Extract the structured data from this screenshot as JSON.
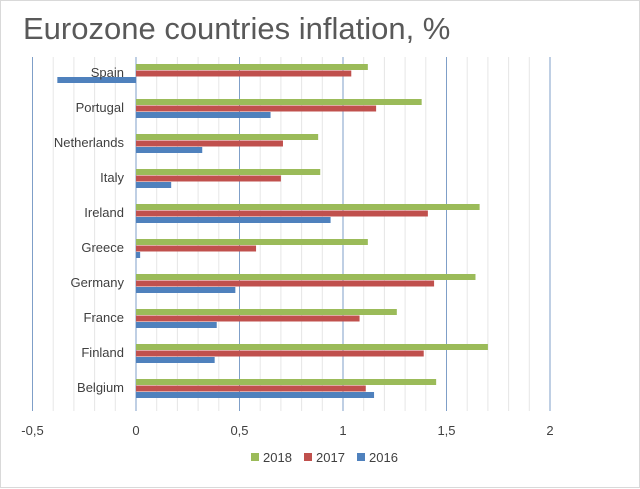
{
  "chart_data": {
    "type": "bar",
    "orientation": "horizontal",
    "title": "Eurozone countries inflation, %",
    "categories": [
      "Spain",
      "Portugal",
      "Netherlands",
      "Italy",
      "Ireland",
      "Greece",
      "Germany",
      "France",
      "Finland",
      "Belgium"
    ],
    "series": [
      {
        "name": "2018",
        "color": "#9bbb59",
        "values": [
          1.12,
          1.38,
          0.88,
          0.89,
          1.66,
          1.12,
          1.64,
          1.26,
          1.7,
          1.45
        ]
      },
      {
        "name": "2017",
        "color": "#c0504d",
        "values": [
          1.04,
          1.16,
          0.71,
          0.7,
          1.41,
          0.58,
          1.44,
          1.08,
          1.39,
          1.11
        ]
      },
      {
        "name": "2016",
        "color": "#4f81bd",
        "values": [
          -0.38,
          0.65,
          0.32,
          0.17,
          0.94,
          0.02,
          0.48,
          0.39,
          0.38,
          1.15
        ]
      }
    ],
    "xlim": [
      -0.5,
      2
    ],
    "xticks": [
      "-0,5",
      "0",
      "0,5",
      "1",
      "1,5",
      "2"
    ],
    "xtick_values": [
      -0.5,
      0,
      0.5,
      1,
      1.5,
      2
    ],
    "grid": true,
    "legend_position": "bottom"
  }
}
